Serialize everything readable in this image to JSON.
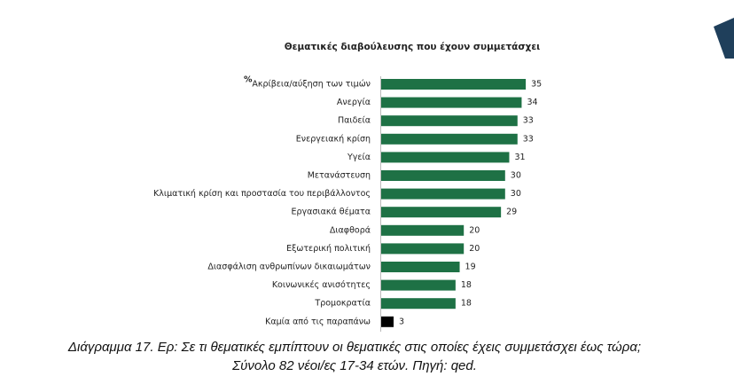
{
  "chart_data": {
    "type": "barh",
    "title": "Θεματικές διαβούλευσης που έχουν συμμετάσχει",
    "unit_label": "%",
    "categories": [
      "Ακρίβεια/αύξηση των τιμών",
      "Ανεργία",
      "Παιδεία",
      "Ενεργειακή κρίση",
      "Υγεία",
      "Μετανάστευση",
      "Κλιματική κρίση και προστασία του περιβάλλοντος",
      "Εργασιακά θέματα",
      "Διαφθορά",
      "Εξωτερική πολιτική",
      "Διασφάλιση ανθρωπίνων δικαιωμάτων",
      "Κοινωνικές ανισότητες",
      "Τρομοκρατία",
      "Καμία από τις παραπάνω"
    ],
    "values": [
      35,
      34,
      33,
      33,
      31,
      30,
      30,
      29,
      20,
      20,
      19,
      18,
      18,
      3
    ],
    "colors": [
      "#1e7145",
      "#1e7145",
      "#1e7145",
      "#1e7145",
      "#1e7145",
      "#1e7145",
      "#1e7145",
      "#1e7145",
      "#1e7145",
      "#1e7145",
      "#1e7145",
      "#1e7145",
      "#1e7145",
      "#000000"
    ],
    "caption": [
      "Διάγραμμα 17. Ερ: Σε τι θεματικές εμπίπτουν οι θεματικές στις οποίες έχεις συμμετάσχει έως τώρα;",
      "Σύνολο 82 νέοι/ες 17-34 ετών. Πηγή: qed."
    ]
  }
}
